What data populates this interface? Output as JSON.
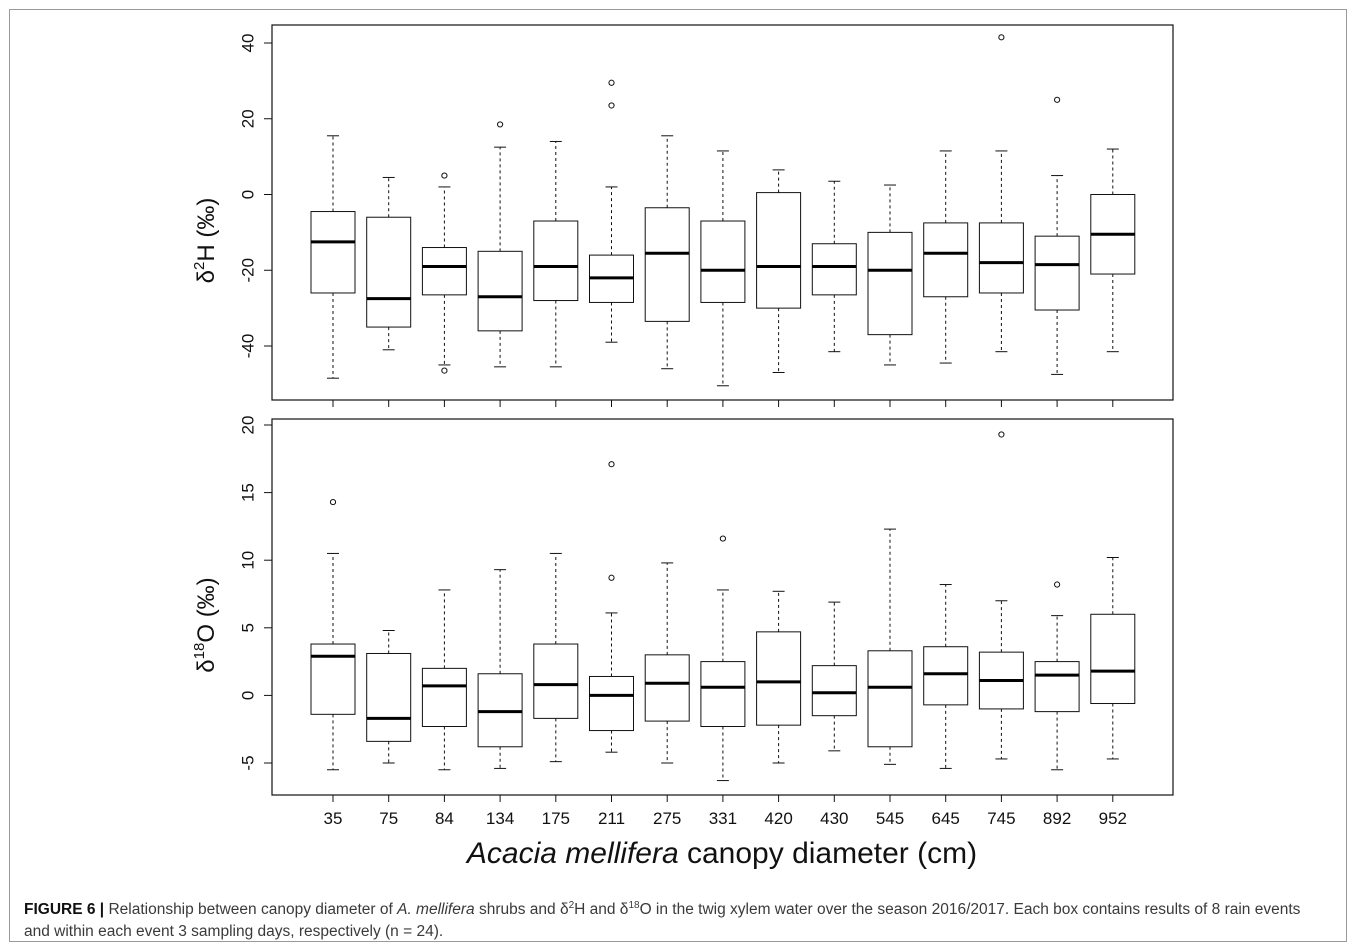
{
  "chart_data": {
    "type": "box",
    "categories": [
      "35",
      "75",
      "84",
      "134",
      "175",
      "211",
      "275",
      "331",
      "420",
      "430",
      "545",
      "645",
      "745",
      "892",
      "952"
    ],
    "xlabel": {
      "italic": "Acacia mellifera",
      "rest": " canopy diameter (cm)"
    },
    "panels": [
      {
        "ylabel": {
          "prefix": "δ",
          "sup": "2",
          "rest": "H (‰)"
        },
        "ylim": [
          -55,
          45
        ],
        "yticks": [
          -40,
          -20,
          0,
          20,
          40
        ],
        "ytick_labels": [
          "-40",
          "-20",
          "0",
          "20",
          "40"
        ],
        "boxes": [
          {
            "min": -48.5,
            "q1": -26,
            "median": -12.5,
            "q3": -4.5,
            "max": 15.5,
            "outliers": []
          },
          {
            "min": -41,
            "q1": -35,
            "median": -27.5,
            "q3": -6,
            "max": 4.5,
            "outliers": []
          },
          {
            "min": -45,
            "q1": -26.5,
            "median": -19,
            "q3": -14,
            "max": 2,
            "outliers": [
              5,
              -46.5
            ]
          },
          {
            "min": -45.5,
            "q1": -36,
            "median": -27,
            "q3": -15,
            "max": 12.5,
            "outliers": [
              18.5
            ]
          },
          {
            "min": -45.5,
            "q1": -28,
            "median": -19,
            "q3": -7,
            "max": 14,
            "outliers": []
          },
          {
            "min": -39,
            "q1": -28.5,
            "median": -22,
            "q3": -16,
            "max": 2,
            "outliers": [
              23.5,
              29.5
            ]
          },
          {
            "min": -46,
            "q1": -33.5,
            "median": -15.5,
            "q3": -3.5,
            "max": 15.5,
            "outliers": []
          },
          {
            "min": -50.5,
            "q1": -28.5,
            "median": -20,
            "q3": -7,
            "max": 11.5,
            "outliers": []
          },
          {
            "min": -47,
            "q1": -30,
            "median": -19,
            "q3": 0.5,
            "max": 6.5,
            "outliers": []
          },
          {
            "min": -41.5,
            "q1": -26.5,
            "median": -19,
            "q3": -13,
            "max": 3.5,
            "outliers": []
          },
          {
            "min": -45,
            "q1": -37,
            "median": -20,
            "q3": -10,
            "max": 2.5,
            "outliers": []
          },
          {
            "min": -44.5,
            "q1": -27,
            "median": -15.5,
            "q3": -7.5,
            "max": 11.5,
            "outliers": []
          },
          {
            "min": -41.5,
            "q1": -26,
            "median": -18,
            "q3": -7.5,
            "max": 11.5,
            "outliers": [
              41.5
            ]
          },
          {
            "min": -47.5,
            "q1": -30.5,
            "median": -18.5,
            "q3": -11,
            "max": 5,
            "outliers": [
              25
            ]
          },
          {
            "min": -41.5,
            "q1": -21,
            "median": -10.5,
            "q3": 0,
            "max": 12,
            "outliers": []
          }
        ]
      },
      {
        "ylabel": {
          "prefix": "δ",
          "sup": "18",
          "rest": "O (‰)"
        },
        "ylim": [
          -7.4,
          20.5
        ],
        "yticks": [
          -5,
          0,
          5,
          10,
          15,
          20
        ],
        "ytick_labels": [
          "-5",
          "0",
          "5",
          "10",
          "15",
          "20"
        ],
        "boxes": [
          {
            "min": -5.5,
            "q1": -1.4,
            "median": 2.9,
            "q3": 3.8,
            "max": 10.5,
            "outliers": [
              14.3
            ]
          },
          {
            "min": -5,
            "q1": -3.4,
            "median": -1.7,
            "q3": 3.1,
            "max": 4.8,
            "outliers": []
          },
          {
            "min": -5.5,
            "q1": -2.3,
            "median": 0.7,
            "q3": 2,
            "max": 7.8,
            "outliers": []
          },
          {
            "min": -5.4,
            "q1": -3.8,
            "median": -1.2,
            "q3": 1.6,
            "max": 9.3,
            "outliers": []
          },
          {
            "min": -4.9,
            "q1": -1.7,
            "median": 0.8,
            "q3": 3.8,
            "max": 10.5,
            "outliers": []
          },
          {
            "min": -4.2,
            "q1": -2.6,
            "median": 0,
            "q3": 1.4,
            "max": 6.1,
            "outliers": [
              8.7,
              17.1
            ]
          },
          {
            "min": -5,
            "q1": -1.9,
            "median": 0.9,
            "q3": 3,
            "max": 9.8,
            "outliers": []
          },
          {
            "min": -6.3,
            "q1": -2.3,
            "median": 0.6,
            "q3": 2.5,
            "max": 7.8,
            "outliers": [
              11.6
            ]
          },
          {
            "min": -5,
            "q1": -2.2,
            "median": 1,
            "q3": 4.7,
            "max": 7.7,
            "outliers": []
          },
          {
            "min": -4.1,
            "q1": -1.5,
            "median": 0.2,
            "q3": 2.2,
            "max": 6.9,
            "outliers": []
          },
          {
            "min": -5.1,
            "q1": -3.8,
            "median": 0.6,
            "q3": 3.3,
            "max": 12.3,
            "outliers": []
          },
          {
            "min": -5.4,
            "q1": -0.7,
            "median": 1.6,
            "q3": 3.6,
            "max": 8.2,
            "outliers": []
          },
          {
            "min": -4.7,
            "q1": -1,
            "median": 1.1,
            "q3": 3.2,
            "max": 7,
            "outliers": [
              19.3
            ]
          },
          {
            "min": -5.5,
            "q1": -1.2,
            "median": 1.5,
            "q3": 2.5,
            "max": 5.9,
            "outliers": [
              8.2
            ]
          },
          {
            "min": -4.7,
            "q1": -0.6,
            "median": 1.8,
            "q3": 6,
            "max": 10.2,
            "outliers": []
          }
        ]
      }
    ]
  },
  "caption": {
    "label": "FIGURE 6 |",
    "t1": " Relationship between canopy diameter of ",
    "species": "A. mellifera",
    "t2": " shrubs and δ",
    "sup1": "2",
    "t3": "H and δ",
    "sup2": "18",
    "t4": "O in the twig xylem water over the season 2016/2017. Each box contains results of 8 rain events and within each event 3 sampling days, respectively (n = 24)."
  }
}
